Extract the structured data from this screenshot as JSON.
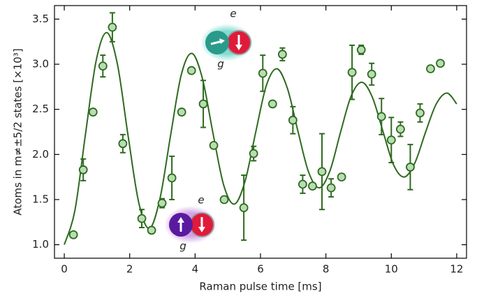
{
  "chart_data": {
    "type": "scatter",
    "xlabel": "Raman pulse time [ms]",
    "ylabel": "Atoms in m≠±5/2 states [×10³]",
    "xlim": [
      -0.3,
      12.3
    ],
    "ylim": [
      0.85,
      3.65
    ],
    "xticks": [
      0,
      2,
      4,
      6,
      8,
      10,
      12
    ],
    "yticks": [
      {
        "value": 1,
        "label": "1.0"
      },
      1.5,
      {
        "value": 2,
        "label": "2.0"
      },
      2.5,
      {
        "value": 3,
        "label": "3.0"
      },
      3.5
    ],
    "annotations": [
      "e",
      "g",
      "e",
      "g"
    ],
    "series": [
      {
        "type": "scatter",
        "color": "#2d6a1e",
        "fill": "#b8ddb2",
        "x": [
          0.28,
          0.58,
          0.88,
          1.18,
          1.47,
          1.79,
          2.37,
          2.67,
          2.99,
          3.29,
          3.59,
          3.89,
          4.25,
          4.57,
          4.89,
          5.49,
          5.79,
          6.07,
          6.37,
          6.67,
          6.99,
          7.29,
          7.59,
          7.88,
          8.16,
          8.48,
          8.8,
          9.08,
          9.4,
          9.7,
          10.0,
          10.28,
          10.58,
          10.88,
          11.2,
          11.5
        ],
        "values": [
          1.11,
          1.83,
          2.47,
          2.98,
          3.41,
          2.12,
          1.29,
          1.16,
          1.46,
          1.74,
          2.47,
          2.93,
          2.56,
          2.1,
          1.5,
          1.41,
          2.01,
          2.9,
          2.56,
          3.11,
          2.38,
          1.67,
          1.65,
          1.81,
          1.63,
          1.75,
          2.91,
          3.16,
          2.89,
          2.42,
          2.16,
          2.28,
          1.86,
          2.46,
          2.95,
          3.01
        ],
        "errors": [
          null,
          0.12,
          null,
          0.12,
          0.16,
          0.1,
          0.1,
          null,
          0.05,
          0.24,
          null,
          null,
          0.26,
          null,
          null,
          0.36,
          0.08,
          0.2,
          null,
          0.07,
          0.15,
          0.1,
          null,
          0.42,
          0.1,
          null,
          0.3,
          0.05,
          0.12,
          0.2,
          0.25,
          0.08,
          0.25,
          0.1,
          null,
          null
        ]
      },
      {
        "type": "line",
        "color": "#2d6a1e",
        "x": [
          0,
          0.325,
          0.65,
          0.975,
          1.3,
          1.625,
          1.95,
          2.275,
          2.6,
          2.925,
          3.25,
          3.575,
          3.9,
          4.225,
          4.55,
          4.875,
          5.2,
          5.525,
          5.85,
          6.175,
          6.5,
          6.825,
          7.15,
          7.475,
          7.8,
          8.125,
          8.45,
          8.775,
          9.1,
          9.425,
          9.75,
          10.075,
          10.4,
          10.725,
          11.05,
          11.375,
          11.7,
          12
        ],
        "values": [
          1.0,
          1.38,
          2.23,
          3.04,
          3.35,
          3.0,
          2.21,
          1.47,
          1.18,
          1.51,
          2.21,
          2.88,
          3.12,
          2.84,
          2.23,
          1.66,
          1.45,
          1.7,
          2.24,
          2.76,
          2.95,
          2.73,
          2.25,
          1.8,
          1.63,
          1.82,
          2.25,
          2.65,
          2.8,
          2.63,
          2.25,
          1.88,
          1.75,
          1.91,
          2.25,
          2.56,
          2.68,
          2.56
        ]
      }
    ]
  }
}
